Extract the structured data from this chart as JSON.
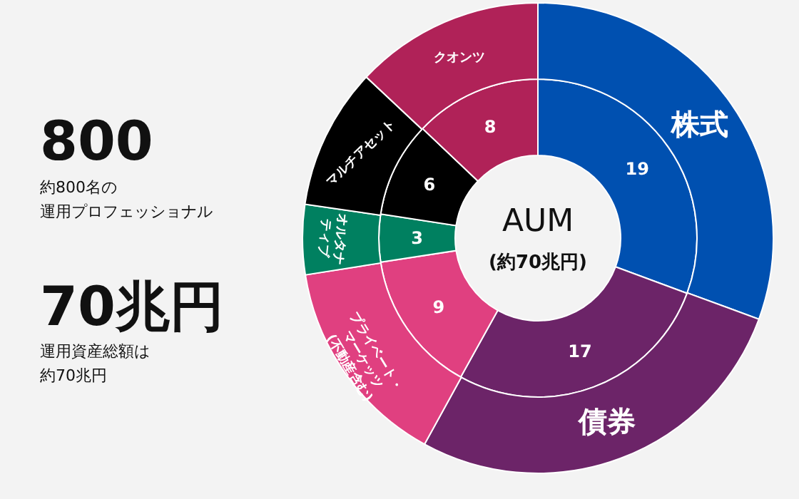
{
  "chart_data": {
    "type": "donut",
    "categories": [
      "株式",
      "債券",
      "プライベート・マーケッツ(不動産含む)",
      "オルタナティブ",
      "マルチアセット",
      "クオンツ"
    ],
    "series": [
      {
        "values": [
          19,
          17,
          9,
          3,
          6,
          8
        ],
        "value_labels": [
          "19",
          "17",
          "9",
          "3",
          "6",
          "8"
        ]
      },
      {
        "values": [
          30.6,
          27.4,
          14.5,
          4.8,
          9.7,
          13.0
        ]
      }
    ],
    "colors": [
      "#0050b0",
      "#6c2468",
      "#e04080",
      "#008060",
      "#000000",
      "#b02258"
    ],
    "annotations": [
      "800",
      "約800名の",
      "運用プロフェッショナル",
      "70兆円",
      "運用資産総額は",
      "約70兆円",
      "AUM",
      "(約70兆円)"
    ]
  }
}
